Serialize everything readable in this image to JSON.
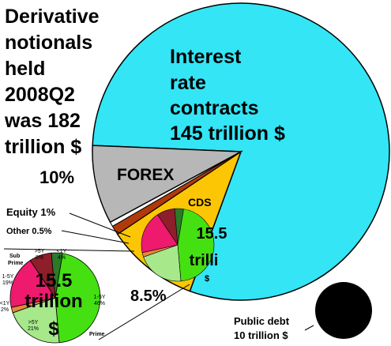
{
  "title_lines": [
    "Derivative",
    "notionals",
    "held",
    "2008Q2",
    "was 182",
    "trillion $"
  ],
  "chart_data": [
    {
      "type": "pie",
      "title": "Derivative notionals held 2008Q2 was 182 trillion $",
      "total": 182,
      "unit": "trillion $",
      "slices": [
        {
          "name": "Interest rate contracts",
          "value": 145,
          "color": "#33e5f5",
          "label_lines": [
            "Interest",
            "rate",
            "contracts",
            "145 trillion $"
          ]
        },
        {
          "name": "FOREX",
          "value": 18.2,
          "color": "#fcc604",
          "label": "FOREX",
          "percent_label": "10%"
        },
        {
          "name": "Equity",
          "value": 1.82,
          "color": "#b03a0a",
          "label": "Equity 1%"
        },
        {
          "name": "Other",
          "value": 0.91,
          "color": "#ffffff",
          "label": "Other 0.5%"
        },
        {
          "name": "CDS",
          "value": 15.5,
          "color": "#b7b7b7",
          "label": "CDS",
          "value_label": "15.5 trillion $",
          "percent_label": "8.5%"
        }
      ]
    },
    {
      "type": "pie",
      "title": "15.5 trillion $",
      "breakdown_of": "CDS",
      "category_labels": [
        "Sub Prime",
        "Prime"
      ],
      "slices": [
        {
          "name": "<1Y",
          "percent": 4,
          "label_lines": [
            "<1Y",
            "4%"
          ],
          "color": "#2a7a2a",
          "group": "Sub Prime"
        },
        {
          "name": "1-5Y",
          "percent": 46,
          "label_lines": [
            "1-5Y",
            "46%"
          ],
          "color": "#44e012",
          "group": "Prime"
        },
        {
          "name": ">5Y",
          "percent": 21,
          "label_lines": [
            ">5Y",
            "21%"
          ],
          "color": "#a6e88a",
          "group": "Prime"
        },
        {
          "name": "<1Y",
          "percent": 2,
          "label_lines": [
            "<1Y",
            "2%"
          ],
          "color": "#e8863a",
          "group": "Sub Prime"
        },
        {
          "name": "1-5Y",
          "percent": 19,
          "label_lines": [
            "1-5Y",
            "19%"
          ],
          "color": "#ee1a6e",
          "group": "Sub Prime"
        },
        {
          "name": ">5Y",
          "percent": 8,
          "label_lines": [
            ">5Y",
            "8%"
          ],
          "color": "#8e1e2a",
          "group": "Sub Prime"
        }
      ]
    },
    {
      "type": "pie",
      "title": "Public debt 10 trillion $",
      "label_lines": [
        "Public debt",
        "10 trillion $"
      ],
      "value": 10,
      "color": "#000000"
    }
  ]
}
